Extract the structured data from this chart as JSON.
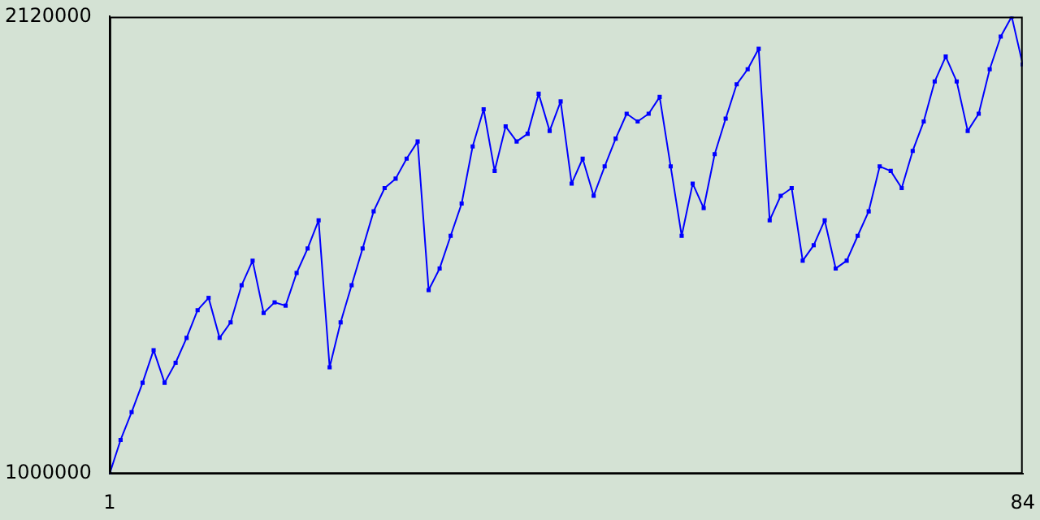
{
  "chart_data": {
    "type": "line",
    "x": [
      1,
      2,
      3,
      4,
      5,
      6,
      7,
      8,
      9,
      10,
      11,
      12,
      13,
      14,
      15,
      16,
      17,
      18,
      19,
      20,
      21,
      22,
      23,
      24,
      25,
      26,
      27,
      28,
      29,
      30,
      31,
      32,
      33,
      34,
      35,
      36,
      37,
      38,
      39,
      40,
      41,
      42,
      43,
      44,
      45,
      46,
      47,
      48,
      49,
      50,
      51,
      52,
      53,
      54,
      55,
      56,
      57,
      58,
      59,
      60,
      61,
      62,
      63,
      64,
      65,
      66,
      67,
      68,
      69,
      70,
      71,
      72,
      73,
      74,
      75,
      76,
      77,
      78,
      79,
      80,
      81,
      82,
      83,
      84
    ],
    "series": [
      {
        "color": "#0000ff",
        "values": [
          1000000,
          1083000,
          1151000,
          1223000,
          1303000,
          1223000,
          1272000,
          1333000,
          1401000,
          1431000,
          1333000,
          1371000,
          1462000,
          1522000,
          1394000,
          1420000,
          1412000,
          1492000,
          1552000,
          1621000,
          1261000,
          1371000,
          1462000,
          1552000,
          1643000,
          1700000,
          1723000,
          1772000,
          1814000,
          1450000,
          1503000,
          1583000,
          1662000,
          1802000,
          1893000,
          1742000,
          1851000,
          1814000,
          1833000,
          1931000,
          1840000,
          1912000,
          1711000,
          1772000,
          1681000,
          1753000,
          1821000,
          1882000,
          1863000,
          1882000,
          1923000,
          1753000,
          1583000,
          1711000,
          1651000,
          1783000,
          1870000,
          1954000,
          1991000,
          2041000,
          1621000,
          1681000,
          1700000,
          1522000,
          1560000,
          1621000,
          1503000,
          1522000,
          1583000,
          1643000,
          1753000,
          1742000,
          1700000,
          1791000,
          1863000,
          1961000,
          2022000,
          1961000,
          1840000,
          1882000,
          1991000,
          2071000,
          2120000,
          2003000
        ]
      }
    ],
    "xlim": [
      1,
      84
    ],
    "xticks": [
      1,
      84
    ],
    "ylim": [
      1000000,
      2120000
    ],
    "yticks": [
      1000000,
      2120000
    ],
    "grid": false,
    "legend": false,
    "marker": "square",
    "line_style": "solid"
  }
}
